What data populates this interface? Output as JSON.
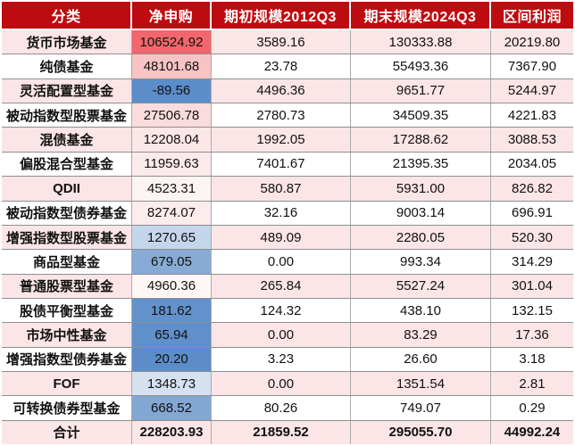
{
  "colors": {
    "header_bg": "#BE0B10",
    "header_text": "#FFFFFF",
    "band_pink": "#FBE5E6",
    "band_white": "#FFFFFF",
    "scale_high_red": "#F1676D",
    "scale_low_blue": "#5B8DC9",
    "grid_line": "#8F8F8F"
  },
  "chart_data": {
    "type": "table",
    "columns": [
      "分类",
      "净申购",
      "期初规模2012Q3",
      "期末规模2024Q3",
      "区间利润"
    ],
    "rows": [
      {
        "category": "货币市场基金",
        "net": "106524.92",
        "begin": "3589.16",
        "end": "130333.88",
        "profit": "20219.80",
        "net_bg": "#F1676D",
        "bold": false
      },
      {
        "category": "纯债基金",
        "net": "48101.68",
        "begin": "23.78",
        "end": "55493.36",
        "profit": "7367.90",
        "net_bg": "#F8C3C5",
        "bold": false
      },
      {
        "category": "灵活配置型基金",
        "net": "-89.56",
        "begin": "4496.36",
        "end": "9651.77",
        "profit": "5244.97",
        "net_bg": "#5B8DC9",
        "bold": false
      },
      {
        "category": "被动指数型股票基金",
        "net": "27506.78",
        "begin": "2780.73",
        "end": "34509.35",
        "profit": "4221.83",
        "net_bg": "#FADCDD",
        "bold": false
      },
      {
        "category": "混债基金",
        "net": "12208.04",
        "begin": "1992.05",
        "end": "17288.62",
        "profit": "3088.53",
        "net_bg": "#FBE7E8",
        "bold": false
      },
      {
        "category": "偏股混合型基金",
        "net": "11959.63",
        "begin": "7401.67",
        "end": "21395.35",
        "profit": "2034.05",
        "net_bg": "#FBEAEA",
        "bold": false
      },
      {
        "category": "QDII",
        "net": "4523.31",
        "begin": "580.87",
        "end": "5931.00",
        "profit": "826.82",
        "net_bg": "#FDF3F2",
        "bold": false
      },
      {
        "category": "被动指数型债券基金",
        "net": "8274.07",
        "begin": "32.16",
        "end": "9003.14",
        "profit": "696.91",
        "net_bg": "#FCECEC",
        "bold": false
      },
      {
        "category": "增强指数型股票基金",
        "net": "1270.65",
        "begin": "489.09",
        "end": "2280.05",
        "profit": "520.30",
        "net_bg": "#C4D6EB",
        "bold": false
      },
      {
        "category": "商品型基金",
        "net": "679.05",
        "begin": "0.00",
        "end": "993.34",
        "profit": "314.29",
        "net_bg": "#88ABD5",
        "bold": false
      },
      {
        "category": "普通股票型基金",
        "net": "4960.36",
        "begin": "265.84",
        "end": "5527.24",
        "profit": "301.04",
        "net_bg": "#FEF7F6",
        "bold": false
      },
      {
        "category": "股债平衡型基金",
        "net": "181.62",
        "begin": "124.32",
        "end": "438.10",
        "profit": "132.15",
        "net_bg": "#6292CB",
        "bold": false
      },
      {
        "category": "市场中性基金",
        "net": "65.94",
        "begin": "0.00",
        "end": "83.29",
        "profit": "17.36",
        "net_bg": "#5F90CA",
        "bold": false
      },
      {
        "category": "增强指数型债券基金",
        "net": "20.20",
        "begin": "3.23",
        "end": "26.60",
        "profit": "3.18",
        "net_bg": "#5C8DC9",
        "bold": false
      },
      {
        "category": "FOF",
        "net": "1348.73",
        "begin": "0.00",
        "end": "1351.54",
        "profit": "2.81",
        "net_bg": "#D5E1F0",
        "bold": false
      },
      {
        "category": "可转换债券型基金",
        "net": "668.52",
        "begin": "80.26",
        "end": "749.07",
        "profit": "0.29",
        "net_bg": "#83A7D3",
        "bold": false
      },
      {
        "category": "合计",
        "net": "228203.93",
        "begin": "21859.52",
        "end": "295055.70",
        "profit": "44992.24",
        "net_bg": null,
        "bold": true
      }
    ]
  }
}
